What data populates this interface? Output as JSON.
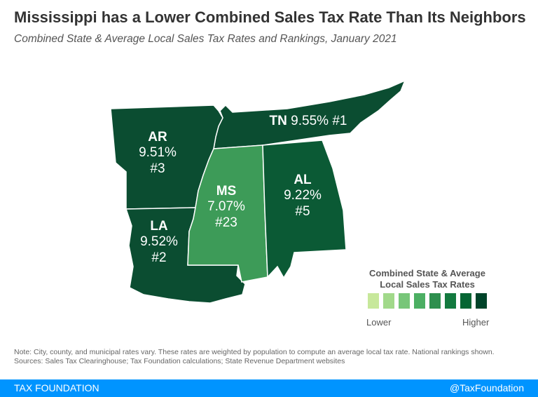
{
  "title": "Mississippi has a Lower Combined Sales Tax Rate Than Its Neighbors",
  "subtitle": "Combined State & Average Local Sales Tax Rates and Rankings, January 2021",
  "states": [
    {
      "abbr": "TN",
      "rate": "9.55%",
      "rank": "#1",
      "color": "#0b4d31"
    },
    {
      "abbr": "AR",
      "rate": "9.51%",
      "rank": "#3",
      "color": "#0b4d31"
    },
    {
      "abbr": "LA",
      "rate": "9.52%",
      "rank": "#2",
      "color": "#0b4d31"
    },
    {
      "abbr": "MS",
      "rate": "7.07%",
      "rank": "#23",
      "color": "#3d9b58"
    },
    {
      "abbr": "AL",
      "rate": "9.22%",
      "rank": "#5",
      "color": "#0b5a35"
    }
  ],
  "legend": {
    "title": "Combined State & Average Local Sales Tax Rates",
    "low": "Lower",
    "high": "Higher",
    "colors": [
      "#c7e89b",
      "#a1d98a",
      "#78c679",
      "#4caf63",
      "#2e8f4e",
      "#137a3f",
      "#056533",
      "#00442a"
    ]
  },
  "note": "Note: City, county, and municipal rates vary. These rates are weighted by population to compute an average local tax rate. National rankings shown.",
  "sources": "Sources: Sales Tax Clearinghouse; Tax Foundation calculations; State Revenue Department websites",
  "footer": {
    "brand": "TAX FOUNDATION",
    "handle": "@TaxFoundation"
  }
}
